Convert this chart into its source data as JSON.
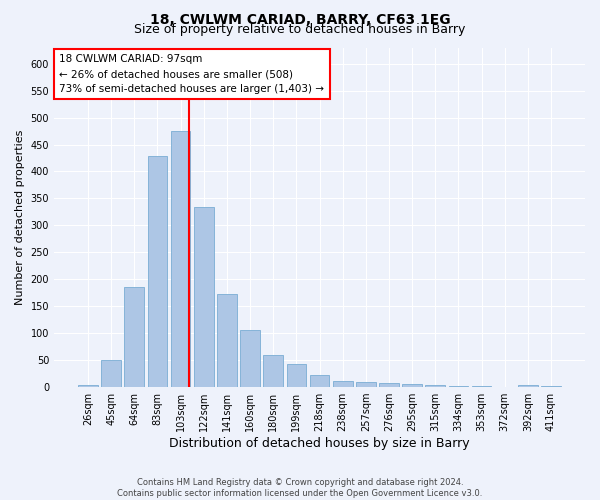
{
  "title": "18, CWLWM CARIAD, BARRY, CF63 1EG",
  "subtitle": "Size of property relative to detached houses in Barry",
  "xlabel": "Distribution of detached houses by size in Barry",
  "ylabel": "Number of detached properties",
  "categories": [
    "26sqm",
    "45sqm",
    "64sqm",
    "83sqm",
    "103sqm",
    "122sqm",
    "141sqm",
    "160sqm",
    "180sqm",
    "199sqm",
    "218sqm",
    "238sqm",
    "257sqm",
    "276sqm",
    "295sqm",
    "315sqm",
    "334sqm",
    "353sqm",
    "372sqm",
    "392sqm",
    "411sqm"
  ],
  "values": [
    4,
    50,
    185,
    428,
    475,
    335,
    172,
    106,
    60,
    43,
    22,
    11,
    10,
    8,
    5,
    3,
    2,
    2,
    1,
    4,
    2
  ],
  "bar_color": "#adc6e5",
  "bar_edge_color": "#7aadd4",
  "vline_index": 4,
  "vline_color": "red",
  "annotation_text": "18 CWLWM CARIAD: 97sqm\n← 26% of detached houses are smaller (508)\n73% of semi-detached houses are larger (1,403) →",
  "annotation_box_color": "white",
  "annotation_box_edge": "red",
  "ylim": [
    0,
    630
  ],
  "yticks": [
    0,
    50,
    100,
    150,
    200,
    250,
    300,
    350,
    400,
    450,
    500,
    550,
    600
  ],
  "footer": "Contains HM Land Registry data © Crown copyright and database right 2024.\nContains public sector information licensed under the Open Government Licence v3.0.",
  "background_color": "#eef2fb",
  "grid_color": "#ffffff",
  "title_fontsize": 10,
  "subtitle_fontsize": 9,
  "tick_fontsize": 7,
  "ylabel_fontsize": 8,
  "xlabel_fontsize": 9,
  "annotation_fontsize": 7.5,
  "footer_fontsize": 6
}
